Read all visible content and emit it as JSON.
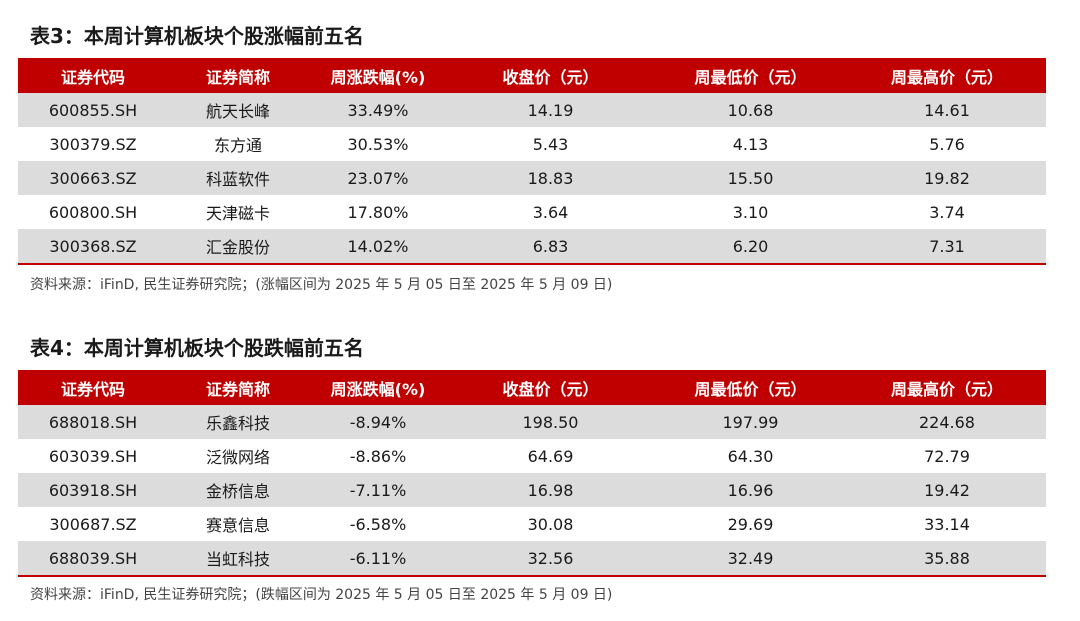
{
  "table3": {
    "title": "表3：本周计算机板块个股涨幅前五名",
    "headers": [
      "证券代码",
      "证券简称",
      "周涨跌幅(%)",
      "收盘价（元）",
      "周最低价（元）",
      "周最高价（元）"
    ],
    "rows": [
      [
        "600855.SH",
        "航天长峰",
        "33.49%",
        "14.19",
        "10.68",
        "14.61"
      ],
      [
        "300379.SZ",
        "东方通",
        "30.53%",
        "5.43",
        "4.13",
        "5.76"
      ],
      [
        "300663.SZ",
        "科蓝软件",
        "23.07%",
        "18.83",
        "15.50",
        "19.82"
      ],
      [
        "600800.SH",
        "天津磁卡",
        "17.80%",
        "3.64",
        "3.10",
        "3.74"
      ],
      [
        "300368.SZ",
        "汇金股份",
        "14.02%",
        "6.83",
        "6.20",
        "7.31"
      ]
    ],
    "source": "资料来源：iFinD, 民生证券研究院；(涨幅区间为 2025 年 5 月 05 日至 2025 年 5 月 09 日)"
  },
  "table4": {
    "title": "表4：本周计算机板块个股跌幅前五名",
    "headers": [
      "证券代码",
      "证券简称",
      "周涨跌幅(%)",
      "收盘价（元）",
      "周最低价（元）",
      "周最高价（元）"
    ],
    "rows": [
      [
        "688018.SH",
        "乐鑫科技",
        "-8.94%",
        "198.50",
        "197.99",
        "224.68"
      ],
      [
        "603039.SH",
        "泛微网络",
        "-8.86%",
        "64.69",
        "64.30",
        "72.79"
      ],
      [
        "603918.SH",
        "金桥信息",
        "-7.11%",
        "16.98",
        "16.96",
        "19.42"
      ],
      [
        "300687.SZ",
        "赛意信息",
        "-6.58%",
        "30.08",
        "29.69",
        "33.14"
      ],
      [
        "688039.SH",
        "当虹科技",
        "-6.11%",
        "32.56",
        "32.49",
        "35.88"
      ]
    ],
    "source": "资料来源：iFinD, 民生证券研究院；(跌幅区间为 2025 年 5 月 05 日至 2025 年 5 月 09 日)"
  },
  "colors": {
    "header_bg": "#c00000",
    "stripe": "#dcdcdc"
  }
}
